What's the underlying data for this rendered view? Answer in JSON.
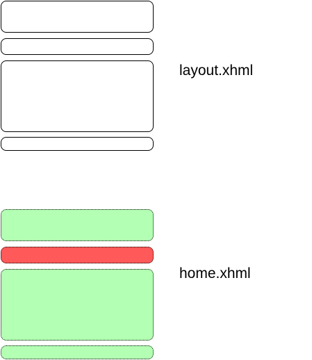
{
  "layout_group": {
    "caption": "layout.xhml",
    "blocks": [
      {
        "style": "solid",
        "color": "#ffffff"
      },
      {
        "style": "solid",
        "color": "#ffffff"
      },
      {
        "style": "solid",
        "color": "#ffffff"
      },
      {
        "style": "solid",
        "color": "#ffffff"
      }
    ]
  },
  "home_group": {
    "caption": "home.xhml",
    "blocks": [
      {
        "style": "dotted",
        "color": "#b3ffb3"
      },
      {
        "style": "dotted",
        "color": "#ff5959"
      },
      {
        "style": "dotted",
        "color": "#b3ffb3"
      },
      {
        "style": "dotted",
        "color": "#b3ffb3"
      }
    ]
  }
}
